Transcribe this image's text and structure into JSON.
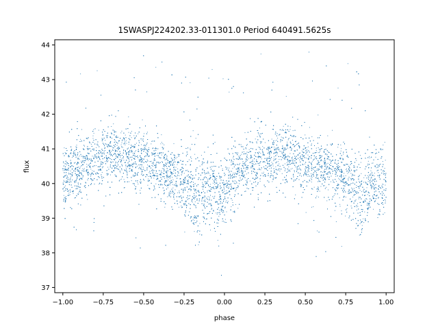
{
  "chart_data": {
    "type": "scatter",
    "title": "1SWASPJ224202.33-011301.0 Period 640491.5625s",
    "xlabel": "phase",
    "ylabel": "flux",
    "xlim": [
      -1.05,
      1.05
    ],
    "ylim": [
      36.85,
      44.15
    ],
    "xticks": [
      -1.0,
      -0.75,
      -0.5,
      -0.25,
      0.0,
      0.25,
      0.5,
      0.75,
      1.0
    ],
    "xtick_labels": [
      "−1.00",
      "−0.75",
      "−0.50",
      "−0.25",
      "0.00",
      "0.25",
      "0.50",
      "0.75",
      "1.00"
    ],
    "yticks": [
      37,
      38,
      39,
      40,
      41,
      42,
      43,
      44
    ],
    "ytick_labels": [
      "37",
      "38",
      "39",
      "40",
      "41",
      "42",
      "43",
      "44"
    ],
    "grid": false,
    "legend": "none",
    "point_color": "#1f77b4",
    "series": [
      {
        "x": [
          -1.0,
          -0.95,
          -0.9,
          -0.85,
          -0.8,
          -0.75,
          -0.7,
          -0.65,
          -0.6,
          -0.55,
          -0.5,
          -0.45,
          -0.4,
          -0.35,
          -0.3,
          -0.25,
          -0.2,
          -0.17,
          -0.15,
          -0.12,
          -0.1,
          -0.05,
          -0.02,
          0.0,
          0.05,
          0.1,
          0.15,
          0.2,
          0.25,
          0.3,
          0.35,
          0.4,
          0.45,
          0.5,
          0.55,
          0.6,
          0.65,
          0.7,
          0.75,
          0.8,
          0.83,
          0.85,
          0.88,
          0.9,
          0.95,
          1.0
        ],
        "y": [
          40.1,
          40.3,
          40.4,
          40.5,
          40.7,
          40.8,
          40.9,
          40.9,
          40.8,
          40.7,
          40.6,
          40.5,
          40.4,
          40.3,
          40.15,
          40.0,
          39.9,
          39.5,
          39.6,
          39.8,
          39.9,
          39.8,
          39.5,
          39.9,
          40.1,
          40.3,
          40.5,
          40.6,
          40.7,
          40.8,
          40.85,
          40.8,
          40.7,
          40.6,
          40.5,
          40.45,
          40.4,
          40.3,
          40.1,
          40.0,
          39.6,
          39.3,
          39.8,
          40.0,
          40.0,
          40.0
        ],
        "spread": [
          0.45,
          0.45,
          0.45,
          0.45,
          0.45,
          0.45,
          0.45,
          0.45,
          0.45,
          0.45,
          0.45,
          0.45,
          0.45,
          0.45,
          0.45,
          0.5,
          0.5,
          0.55,
          0.55,
          0.5,
          0.5,
          0.5,
          0.55,
          0.5,
          0.45,
          0.45,
          0.45,
          0.45,
          0.45,
          0.45,
          0.45,
          0.45,
          0.45,
          0.45,
          0.45,
          0.45,
          0.45,
          0.45,
          0.5,
          0.5,
          0.55,
          0.55,
          0.5,
          0.5,
          0.5,
          0.5
        ]
      }
    ]
  }
}
